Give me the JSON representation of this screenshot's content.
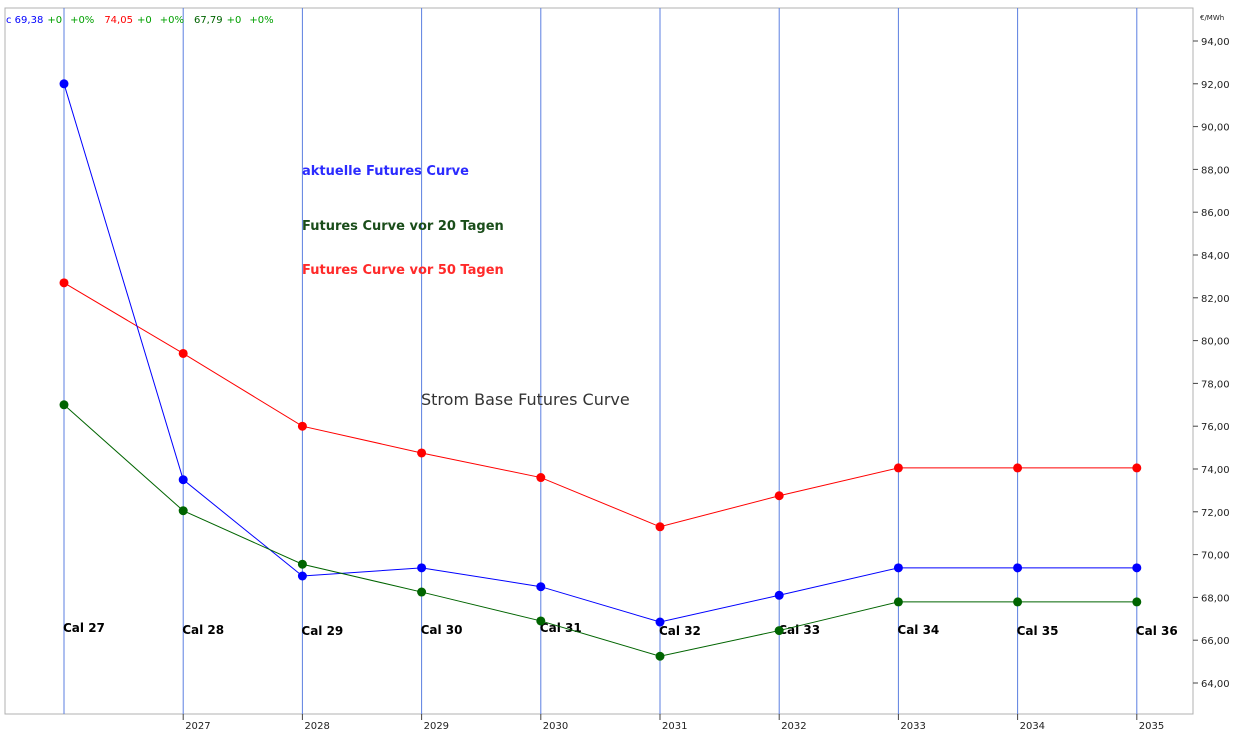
{
  "chart_data": {
    "type": "line",
    "title": "Strom Base Futures Curve",
    "unit": "€/MWh",
    "ylim": [
      62.7,
      95.2
    ],
    "y_ticks": [
      "64,00",
      "66,00",
      "68,00",
      "70,00",
      "72,00",
      "74,00",
      "76,00",
      "78,00",
      "80,00",
      "82,00",
      "84,00",
      "86,00",
      "88,00",
      "90,00",
      "92,00",
      "94,00"
    ],
    "x_year_ticks": [
      "2027",
      "2028",
      "2029",
      "2030",
      "2031",
      "2032",
      "2033",
      "2034",
      "2035"
    ],
    "categories": [
      "Cal 27",
      "Cal 28",
      "Cal 29",
      "Cal 30",
      "Cal 31",
      "Cal 32",
      "Cal 33",
      "Cal 34",
      "Cal 35",
      "Cal 36"
    ],
    "grid": "vertical",
    "series": [
      {
        "name": "Futures Curve vor 50 Tagen",
        "color": "#ff0000",
        "values": [
          82.7,
          79.4,
          76.0,
          74.75,
          73.6,
          71.3,
          72.75,
          74.05,
          74.05,
          74.05
        ]
      },
      {
        "name": "aktuelle Futures Curve",
        "color": "#0000ff",
        "values": [
          92.0,
          73.5,
          69.0,
          69.38,
          68.5,
          66.85,
          68.1,
          69.38,
          69.38,
          69.38
        ]
      },
      {
        "name": "Futures Curve vor 20 Tagen",
        "color": "#006400",
        "values": [
          77.0,
          72.05,
          69.55,
          68.25,
          66.9,
          65.25,
          66.45,
          67.79,
          67.79,
          67.79
        ]
      }
    ],
    "header_quotes": [
      {
        "text": "c 69,38",
        "color": "#0000ff"
      },
      {
        "text": "+0",
        "color": "#00a000"
      },
      {
        "text": "+0%",
        "color": "#00a000"
      },
      {
        "text": "74,05",
        "color": "#ff0000"
      },
      {
        "text": "+0",
        "color": "#00a000"
      },
      {
        "text": "+0%",
        "color": "#00a000"
      },
      {
        "text": "67,79",
        "color": "#006400"
      },
      {
        "text": "+0",
        "color": "#00a000"
      },
      {
        "text": "+0%",
        "color": "#00a000"
      }
    ],
    "legend_entries": [
      {
        "text": "aktuelle Futures Curve",
        "color": "#2b2bff"
      },
      {
        "text": "Futures Curve vor 20 Tagen",
        "color": "#1a4d1a"
      },
      {
        "text": "Futures Curve vor 50 Tagen",
        "color": "#ff2a2a"
      }
    ]
  }
}
